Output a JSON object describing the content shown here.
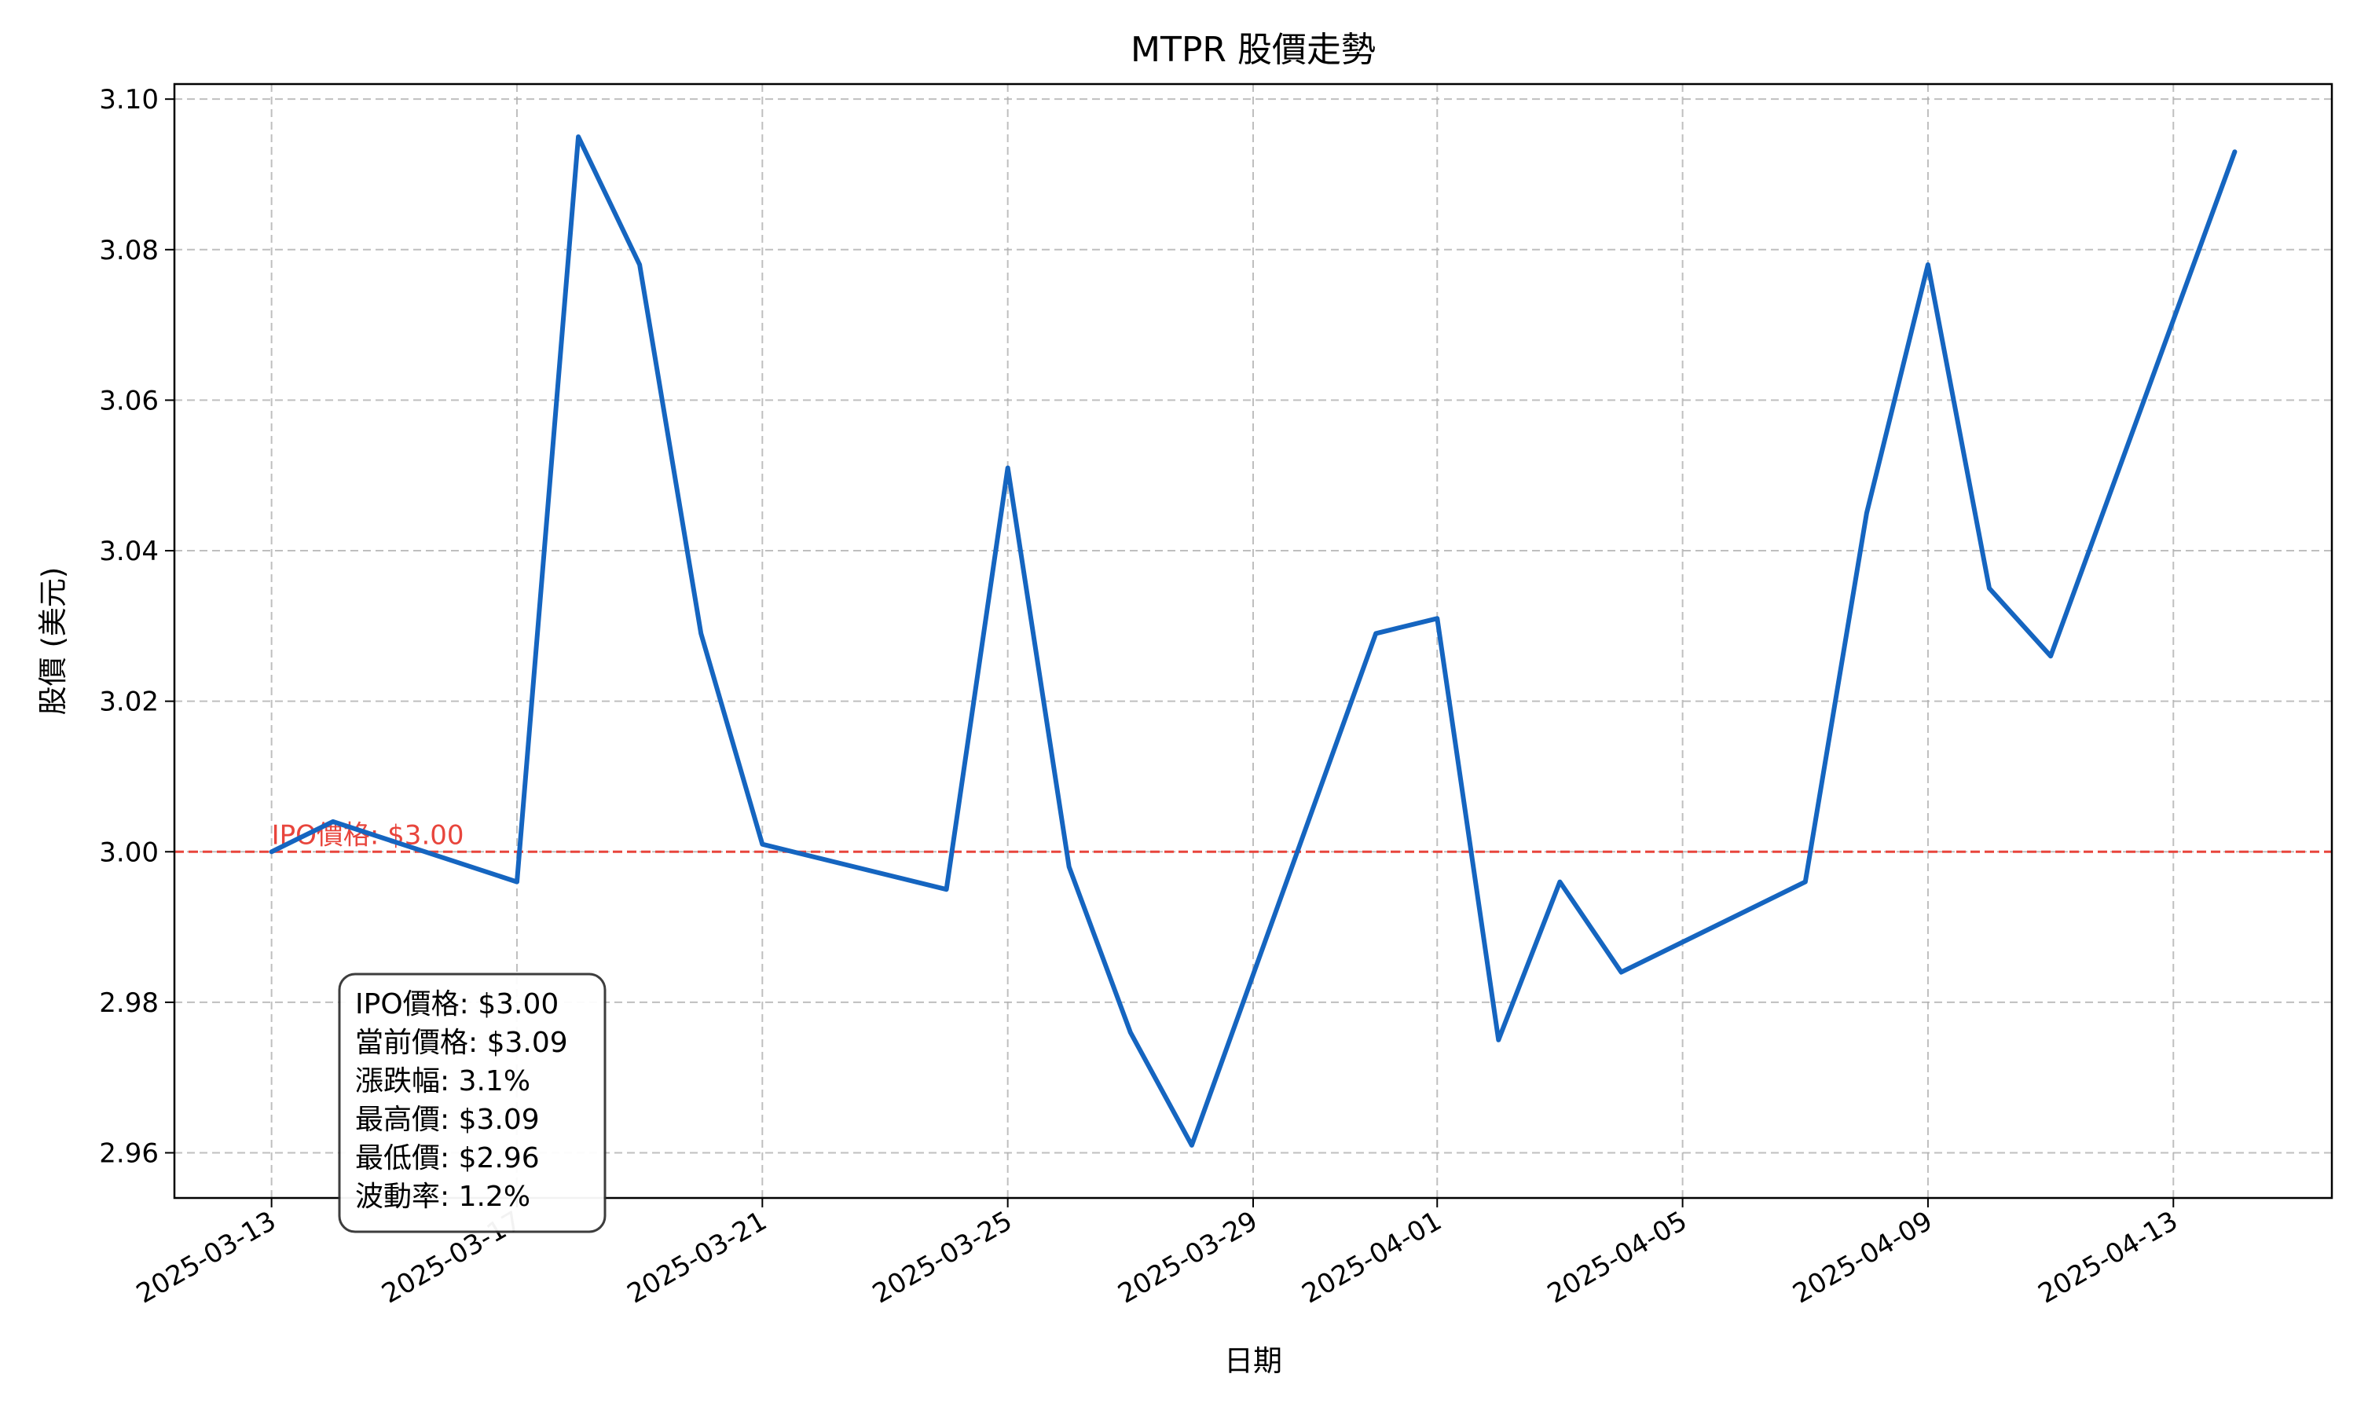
{
  "chart_data": {
    "type": "line",
    "title": "MTPR 股價走勢",
    "xlabel": "日期",
    "ylabel": "股價 (美元)",
    "ylim": [
      2.954,
      3.102
    ],
    "xlim": [
      "2025-03-11T10:00",
      "2025-04-15T14:00"
    ],
    "grid": true,
    "x_ticks": [
      "2025-03-13",
      "2025-03-17",
      "2025-03-21",
      "2025-03-25",
      "2025-03-29",
      "2025-04-01",
      "2025-04-05",
      "2025-04-09",
      "2025-04-13"
    ],
    "y_ticks": [
      2.96,
      2.98,
      3.0,
      3.02,
      3.04,
      3.06,
      3.08,
      3.1
    ],
    "series": [
      {
        "color": "#1565c0",
        "points": [
          {
            "x": "2025-03-13",
            "y": 3.0
          },
          {
            "x": "2025-03-14",
            "y": 3.004
          },
          {
            "x": "2025-03-17",
            "y": 2.996
          },
          {
            "x": "2025-03-18",
            "y": 3.095
          },
          {
            "x": "2025-03-19",
            "y": 3.078
          },
          {
            "x": "2025-03-20",
            "y": 3.029
          },
          {
            "x": "2025-03-21",
            "y": 3.001
          },
          {
            "x": "2025-03-24",
            "y": 2.995
          },
          {
            "x": "2025-03-25",
            "y": 3.051
          },
          {
            "x": "2025-03-26",
            "y": 2.998
          },
          {
            "x": "2025-03-27",
            "y": 2.976
          },
          {
            "x": "2025-03-28",
            "y": 2.961
          },
          {
            "x": "2025-03-31",
            "y": 3.029
          },
          {
            "x": "2025-04-01",
            "y": 3.031
          },
          {
            "x": "2025-04-02",
            "y": 2.975
          },
          {
            "x": "2025-04-03",
            "y": 2.996
          },
          {
            "x": "2025-04-04",
            "y": 2.984
          },
          {
            "x": "2025-04-07",
            "y": 2.996
          },
          {
            "x": "2025-04-08",
            "y": 3.045
          },
          {
            "x": "2025-04-09",
            "y": 3.078
          },
          {
            "x": "2025-04-10",
            "y": 3.035
          },
          {
            "x": "2025-04-11",
            "y": 3.026
          },
          {
            "x": "2025-04-14",
            "y": 3.093
          }
        ]
      }
    ],
    "reference_line": {
      "y": 3.0,
      "label": "IPO價格: $3.00",
      "color": "#e8453c"
    },
    "stats_box": [
      "IPO價格: $3.00",
      "當前價格: $3.09",
      "漲跌幅: 3.1%",
      "最高價: $3.09",
      "最低價: $2.96",
      "波動率: 1.2%"
    ]
  }
}
